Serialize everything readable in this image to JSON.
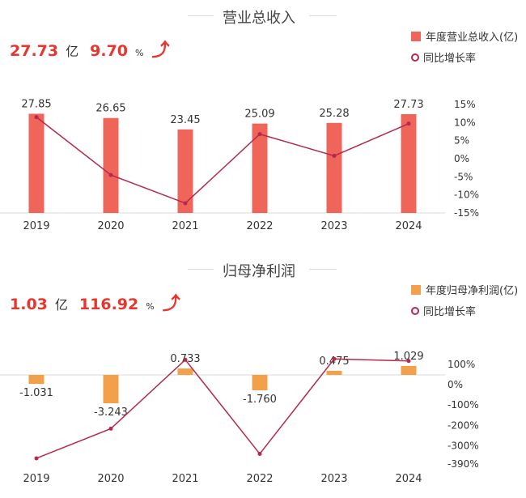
{
  "revenue": {
    "title": "营业总收入",
    "kpi_value": "27.73",
    "kpi_unit": "亿",
    "kpi_growth": "9.70",
    "kpi_pct": "%",
    "legend_bar": "年度营业总收入(亿)",
    "legend_line": "同比增长率"
  },
  "profit": {
    "title": "归母净利润",
    "kpi_value": "1.03",
    "kpi_unit": "亿",
    "kpi_growth": "116.92",
    "kpi_pct": "%",
    "legend_bar": "年度归母净利润(亿)",
    "legend_line": "同比增长率"
  },
  "colors": {
    "bar1": "#f0655a",
    "bar2": "#f3a04b",
    "line": "#b5294a",
    "kpi": "#e8352e"
  },
  "chart_data": [
    {
      "type": "bar",
      "title": "营业总收入",
      "categories": [
        "2019",
        "2020",
        "2021",
        "2022",
        "2023",
        "2024"
      ],
      "series": [
        {
          "name": "年度营业总收入(亿)",
          "values": [
            27.85,
            26.65,
            23.45,
            25.09,
            25.28,
            27.73
          ],
          "labels": [
            "27.85",
            "26.65",
            "23.45",
            "25.09",
            "25.28",
            "27.73"
          ]
        },
        {
          "name": "同比增长率",
          "type": "line",
          "axis": "right",
          "values": [
            11.5,
            -4.5,
            -12.3,
            6.8,
            0.8,
            9.7
          ]
        }
      ],
      "y2_ticks": [
        "15%",
        "10%",
        "5%",
        "0%",
        "-5%",
        "-10%",
        "-15%"
      ],
      "y2_range": [
        -15,
        15
      ]
    },
    {
      "type": "bar",
      "title": "归母净利润",
      "categories": [
        "2019",
        "2020",
        "2021",
        "2022",
        "2023",
        "2024"
      ],
      "series": [
        {
          "name": "年度归母净利润(亿)",
          "values": [
            -1.031,
            -3.243,
            0.733,
            -1.76,
            0.475,
            1.029
          ],
          "labels": [
            "-1.031",
            "-3.243",
            "0.733",
            "-1.760",
            "0.475",
            "1.029"
          ]
        },
        {
          "name": "同比增长率",
          "type": "line",
          "axis": "right",
          "values": [
            -362,
            -216,
            122.6,
            -340,
            126.9,
            116.9
          ]
        }
      ],
      "y2_ticks": [
        "100%",
        "0%",
        "-100%",
        "-200%",
        "-300%",
        "-390%"
      ],
      "y2_range": [
        -390,
        100
      ]
    }
  ]
}
